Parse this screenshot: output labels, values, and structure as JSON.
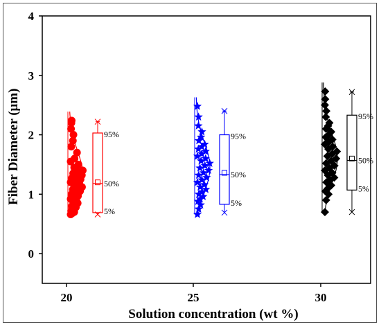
{
  "chart_data": {
    "type": "scatter",
    "subtype": "box-plot with overlaid data points and normal distribution curves",
    "xlabel": "Solution concentration (wt %)",
    "ylabel": "Fiber Diameter (μm)",
    "ylim": [
      -0.5,
      4
    ],
    "yticks": [
      "0",
      "1",
      "2",
      "3",
      "4"
    ],
    "xticks": [
      "20",
      "25",
      "30"
    ],
    "grid": false,
    "legend": "none",
    "series": [
      {
        "category": "20",
        "color": "#ff0000",
        "marker": "circle",
        "percentile_labels": [
          "95%",
          "50%",
          "5%"
        ],
        "box": {
          "p5": 0.69,
          "p25": 0.69,
          "median": 1.18,
          "mean": 1.2,
          "p75": 2.03,
          "p95": 2.03,
          "min": 0.66,
          "max": 2.22
        },
        "points": [
          0.66,
          0.68,
          0.7,
          0.72,
          0.75,
          0.78,
          0.8,
          0.83,
          0.85,
          0.88,
          0.9,
          0.92,
          0.95,
          0.97,
          1.0,
          1.02,
          1.05,
          1.08,
          1.1,
          1.12,
          1.15,
          1.17,
          1.2,
          1.22,
          1.25,
          1.27,
          1.3,
          1.32,
          1.35,
          1.38,
          1.4,
          1.45,
          1.5,
          1.55,
          1.6,
          1.7,
          1.8,
          1.9,
          2.0,
          2.1,
          2.2,
          2.24
        ],
        "curve_peak": 1.3
      },
      {
        "category": "25",
        "color": "#0000ff",
        "marker": "star",
        "percentile_labels": [
          "95%",
          "50%",
          "5%"
        ],
        "box": {
          "p5": 0.83,
          "p25": 0.83,
          "median": 1.33,
          "mean": 1.36,
          "p75": 2.0,
          "p95": 2.0,
          "min": 0.69,
          "max": 2.4
        },
        "points": [
          0.66,
          0.75,
          0.82,
          0.88,
          0.92,
          0.96,
          1.0,
          1.04,
          1.08,
          1.12,
          1.16,
          1.2,
          1.24,
          1.28,
          1.32,
          1.36,
          1.4,
          1.44,
          1.48,
          1.52,
          1.56,
          1.6,
          1.64,
          1.68,
          1.72,
          1.76,
          1.8,
          1.84,
          1.9,
          1.96,
          2.05,
          2.15,
          2.3,
          2.48
        ],
        "curve_peak": 1.45
      },
      {
        "category": "30",
        "color": "#000000",
        "marker": "diamond",
        "percentile_labels": [
          "95%",
          "50%",
          "5%"
        ],
        "box": {
          "p5": 1.07,
          "p25": 1.07,
          "median": 1.57,
          "mean": 1.6,
          "p75": 2.33,
          "p95": 2.33,
          "min": 0.7,
          "max": 2.72
        },
        "points": [
          0.7,
          0.9,
          1.0,
          1.05,
          1.1,
          1.15,
          1.2,
          1.24,
          1.28,
          1.32,
          1.36,
          1.4,
          1.44,
          1.48,
          1.52,
          1.56,
          1.6,
          1.64,
          1.68,
          1.72,
          1.76,
          1.8,
          1.84,
          1.88,
          1.92,
          1.96,
          2.0,
          2.05,
          2.1,
          2.15,
          2.2,
          2.3,
          2.4,
          2.5,
          2.6,
          2.73
        ],
        "curve_peak": 1.6
      }
    ]
  }
}
